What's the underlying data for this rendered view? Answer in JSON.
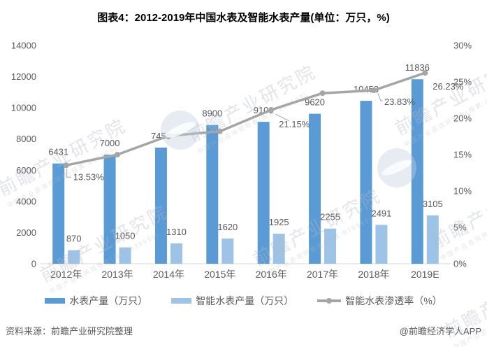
{
  "title": "图表4：2012-2019年中国水表及智能水表产量(单位：万只，%)",
  "chart_data": {
    "type": "combo",
    "categories": [
      "2012年",
      "2013年",
      "2014年",
      "2015年",
      "2016年",
      "2017年",
      "2018年",
      "2019E"
    ],
    "series": [
      {
        "name": "水表产量（万只）",
        "type": "bar",
        "color": "#5B9BD5",
        "values": [
          6431,
          7000,
          7450,
          8900,
          9100,
          9620,
          10453,
          11836
        ]
      },
      {
        "name": "智能水表产量（万只）",
        "type": "bar",
        "color": "#9DC3E6",
        "values": [
          870,
          1050,
          1310,
          1620,
          1925,
          2255,
          2491,
          3105
        ]
      },
      {
        "name": "智能水表渗透率（%）",
        "type": "line",
        "color": "#A5A5A5",
        "values": [
          13.53,
          15.0,
          17.58,
          18.2,
          21.15,
          23.44,
          23.83,
          26.23
        ],
        "point_labels": [
          {
            "index": 0,
            "text": "13.53%"
          },
          {
            "index": 4,
            "text": "21.15%"
          },
          {
            "index": 6,
            "text": "23.83%"
          },
          {
            "index": 7,
            "text": "26.23%"
          }
        ]
      }
    ],
    "left_axis": {
      "min": 0,
      "max": 14000,
      "step": 2000,
      "ticks": [
        "0",
        "2000",
        "4000",
        "6000",
        "8000",
        "10000",
        "12000",
        "14000"
      ]
    },
    "right_axis": {
      "min": 0,
      "max": 30,
      "step": 5,
      "ticks": [
        "0%",
        "5%",
        "10%",
        "15%",
        "20%",
        "25%",
        "30%"
      ]
    },
    "colors": {
      "bar1": "#5B9BD5",
      "bar2": "#9DC3E6",
      "line": "#A5A5A5",
      "axis_text": "#595959",
      "label_text": "#595959",
      "baseline": "#D9D9D9",
      "leader": "#A6A6A6"
    },
    "legend_position": "bottom",
    "grid": false
  },
  "footer": {
    "source": "资料来源：前瞻产业研究院整理",
    "brand": "@前瞻经济学人APP"
  },
  "watermark": {
    "text": "前瞻产业研究院",
    "subtext": "中国产业咨询领导者(股票:839599)"
  }
}
